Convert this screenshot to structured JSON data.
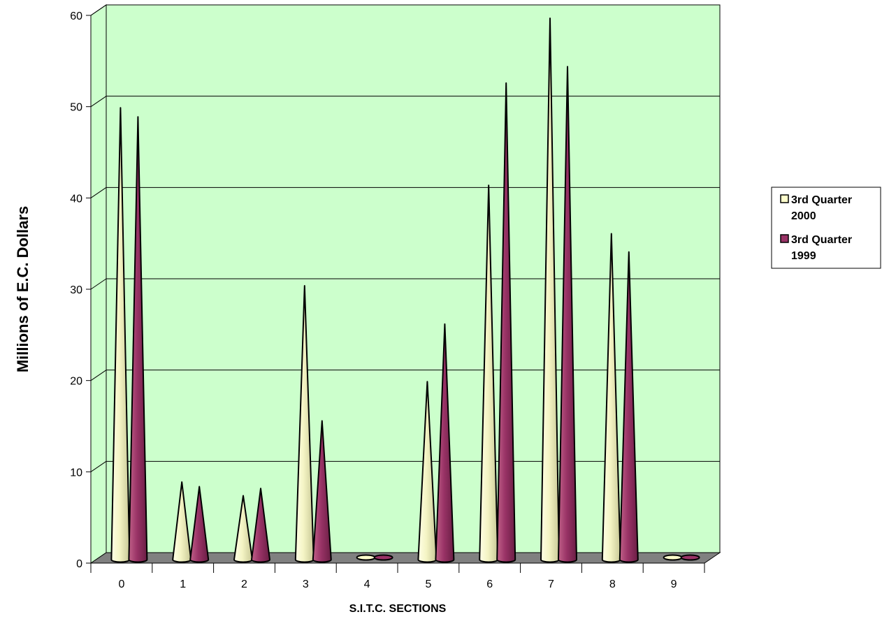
{
  "chart_data": {
    "type": "bar",
    "style": "3d-cone",
    "categories": [
      "0",
      "1",
      "2",
      "3",
      "4",
      "5",
      "6",
      "7",
      "8",
      "9"
    ],
    "series": [
      {
        "name": "3rd Quarter 2000",
        "legend_lines": [
          "3rd Quarter",
          "2000"
        ],
        "color": "#FFFFCC",
        "values": [
          49.5,
          8.5,
          7.0,
          30.0,
          0.0,
          19.5,
          41.0,
          59.3,
          35.7,
          0.0
        ]
      },
      {
        "name": "3rd Quarter 1999",
        "legend_lines": [
          "3rd Quarter",
          "1999"
        ],
        "color": "#993366",
        "values": [
          48.5,
          8.0,
          7.8,
          15.2,
          0.0,
          25.8,
          52.2,
          54.0,
          33.7,
          0.0
        ]
      }
    ],
    "xlabel": "S.I.T.C. SECTIONS",
    "ylabel": "Millions of E.C. Dollars",
    "ylim": [
      0,
      60
    ],
    "yticks": [
      "0",
      "10",
      "20",
      "30",
      "40",
      "50",
      "60"
    ],
    "grid": true,
    "legend_position": "right",
    "wall_color": "#CCFFCC",
    "floor_color": "#808080"
  }
}
